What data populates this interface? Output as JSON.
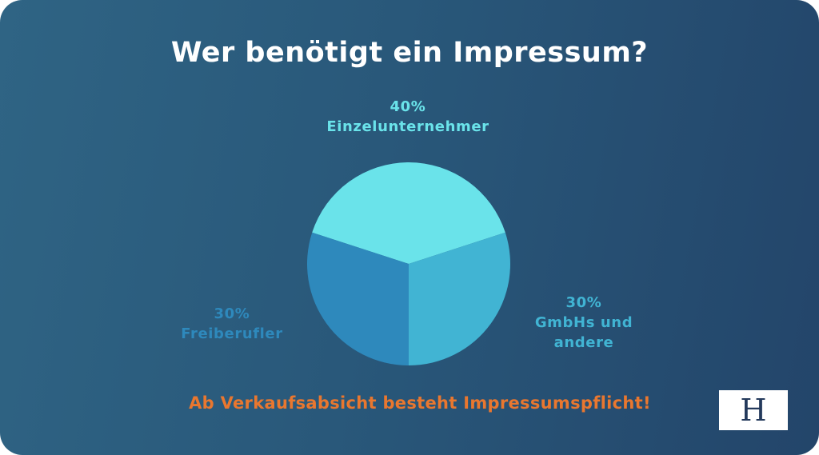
{
  "title": "Wer benötigt ein Impressum?",
  "footer_text": "Ab Verkaufsabsicht besteht Impressumspflicht!",
  "logo": {
    "letter": "H"
  },
  "chart_data": {
    "type": "pie",
    "title": "Wer benötigt ein Impressum?",
    "slices": [
      {
        "name": "Einzelunternehmer",
        "value": 40,
        "value_label": "40%",
        "label_lines": [
          "Einzelunternehmer"
        ],
        "color": "#6ae3ea"
      },
      {
        "name": "GmbHs und andere",
        "value": 30,
        "value_label": "30%",
        "label_lines": [
          "GmbHs und",
          "andere"
        ],
        "color": "#41b4d3"
      },
      {
        "name": "Freiberufler",
        "value": 30,
        "value_label": "30%",
        "label_lines": [
          "Freiberufler"
        ],
        "color": "#2e89bc"
      }
    ],
    "label_colors": [
      "#6ae3ea",
      "#41b4d3",
      "#2e89bc"
    ]
  }
}
